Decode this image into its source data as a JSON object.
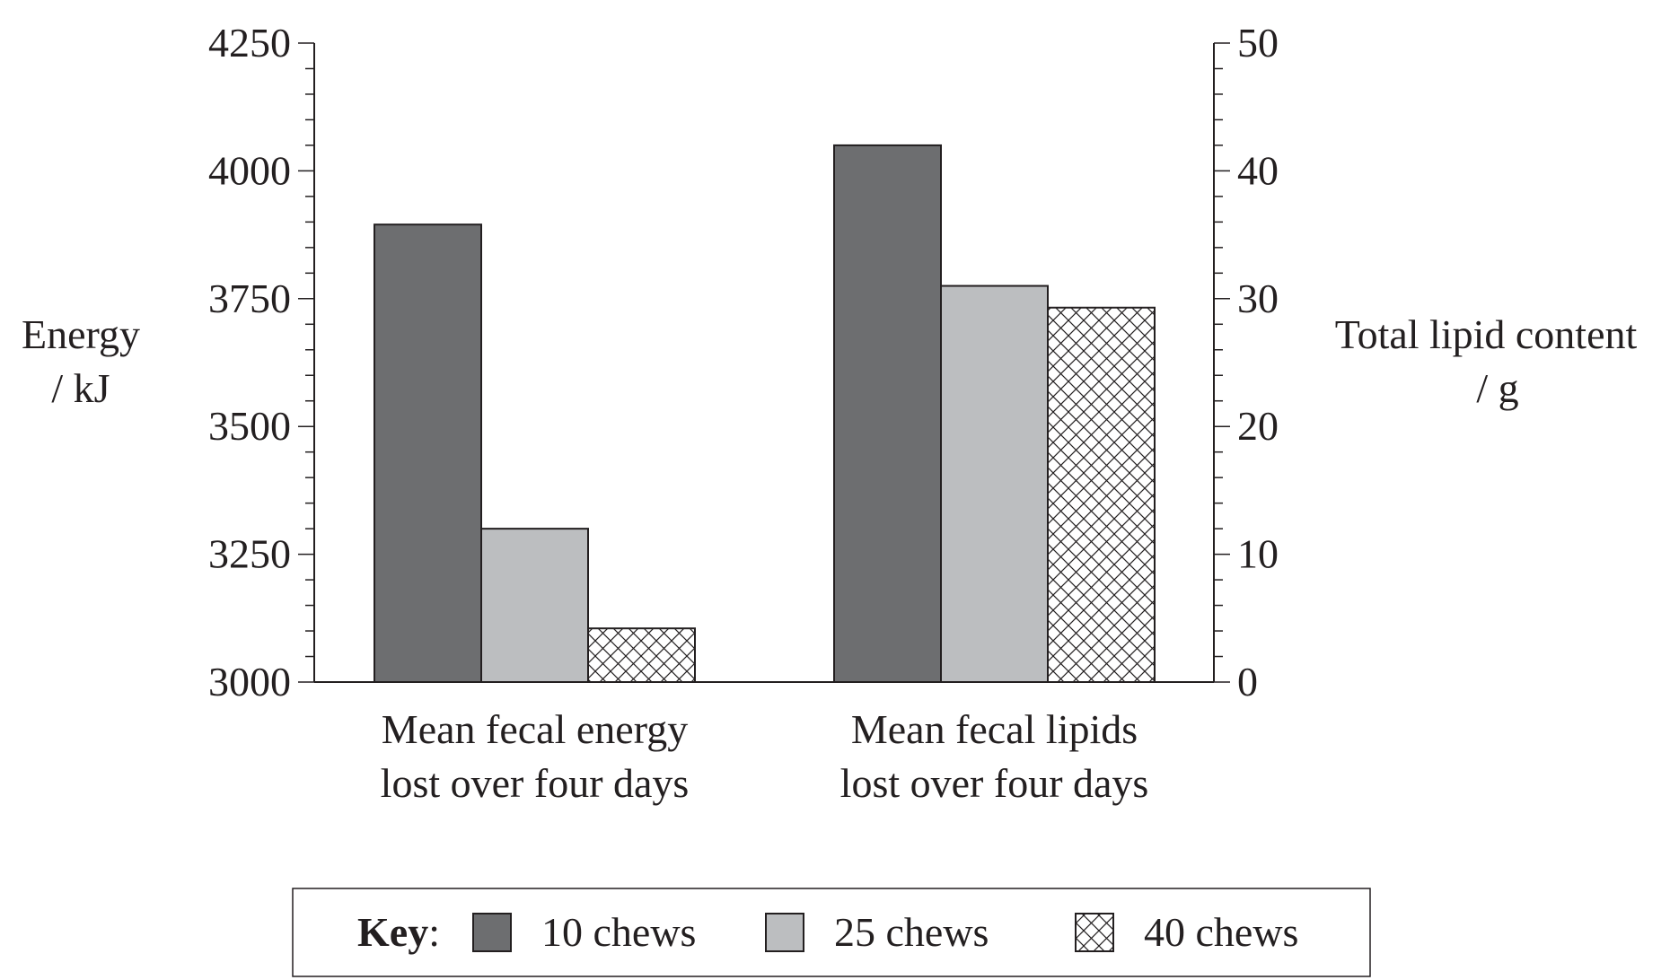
{
  "chart_data": {
    "type": "bar",
    "categories": [
      [
        "Mean fecal energy",
        "lost over four days"
      ],
      [
        "Mean fecal lipids",
        "lost over four days"
      ]
    ],
    "left_axis": {
      "label": [
        "Energy",
        "/ kJ"
      ],
      "ylim": [
        3000,
        4250
      ],
      "major_ticks": [
        3000,
        3250,
        3500,
        3750,
        4000,
        4250
      ],
      "minor_step": 50
    },
    "right_axis": {
      "label": [
        "Total lipid content",
        "/ g"
      ],
      "ylim": [
        0,
        50
      ],
      "major_ticks": [
        0,
        10,
        20,
        30,
        40,
        50
      ],
      "minor_step": 2
    },
    "series": [
      {
        "name": "10 chews",
        "fill": "#6d6e70",
        "values": [
          3895,
          42
        ]
      },
      {
        "name": "25 chews",
        "fill": "#bcbec0",
        "values": [
          3300,
          31
        ]
      },
      {
        "name": "40 chews",
        "fill": "hatch",
        "values": [
          3105,
          29.3
        ]
      }
    ],
    "category_axis": [
      "left",
      "right"
    ],
    "legend": {
      "title": "Key",
      "placement": "bottom"
    },
    "grid": false
  }
}
